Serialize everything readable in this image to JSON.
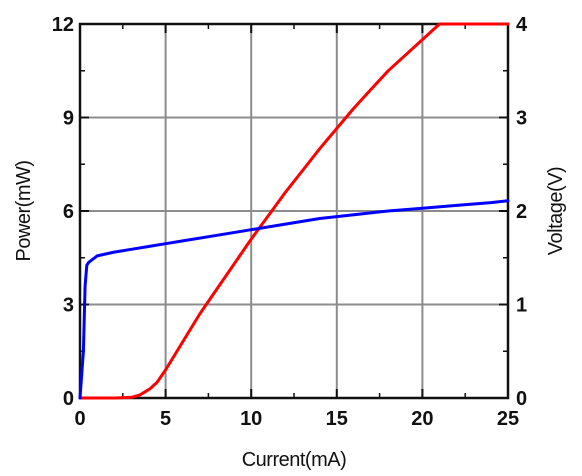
{
  "chart_data": {
    "type": "line",
    "title": "",
    "xlabel": "Current(mA)",
    "ylabel_left": "Power(mW)",
    "ylabel_right": "Voltage(V)",
    "xlim": [
      0,
      25
    ],
    "ylim_left": [
      0,
      12
    ],
    "ylim_right": [
      0,
      4
    ],
    "x_ticks": [
      "0",
      "5",
      "10",
      "15",
      "20",
      "25"
    ],
    "y_ticks_left": [
      "0",
      "3",
      "6",
      "9",
      "12"
    ],
    "y_ticks_right": [
      "0",
      "1",
      "2",
      "3",
      "4"
    ],
    "grid": true,
    "legend": "none",
    "series": [
      {
        "axis": "left",
        "color": "#ff0000",
        "x": [
          0,
          2,
          3,
          3.5,
          3.8,
          4.1,
          4.5,
          5,
          6,
          7,
          8,
          9,
          10,
          11,
          12,
          13,
          14,
          15,
          16,
          17,
          18,
          19,
          20,
          21,
          22,
          23,
          24,
          25
        ],
        "values": [
          0,
          0,
          0.02,
          0.1,
          0.2,
          0.3,
          0.5,
          0.9,
          1.8,
          2.7,
          3.5,
          4.3,
          5.1,
          5.85,
          6.6,
          7.3,
          8.0,
          8.65,
          9.3,
          9.9,
          10.5,
          11.0,
          11.5,
          12.0,
          12.4,
          12.8,
          13.2,
          12.0
        ]
      },
      {
        "axis": "right",
        "color": "#0000ff",
        "x": [
          0,
          0.2,
          0.3,
          0.4,
          0.5,
          1,
          2,
          3,
          4,
          5,
          6,
          8,
          10,
          12,
          14,
          16,
          18,
          20,
          22,
          24,
          25
        ],
        "values": [
          0,
          0.5,
          1.2,
          1.42,
          1.45,
          1.52,
          1.56,
          1.59,
          1.62,
          1.65,
          1.68,
          1.74,
          1.8,
          1.86,
          1.92,
          1.96,
          2.0,
          2.03,
          2.06,
          2.09,
          2.11
        ]
      }
    ]
  }
}
